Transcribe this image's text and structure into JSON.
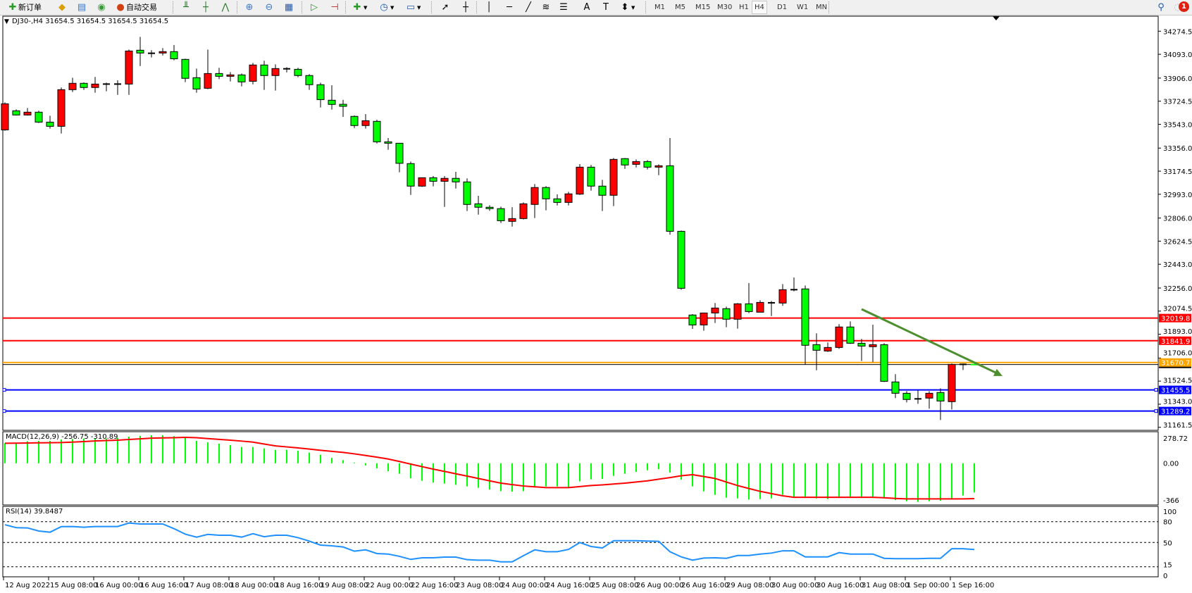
{
  "toolbar": {
    "new_order": "新订单",
    "auto_trading": "自动交易",
    "timeframes": [
      "M1",
      "M5",
      "M15",
      "M30",
      "H1",
      "H4",
      "D1",
      "W1",
      "MN"
    ],
    "active_timeframe": "H4",
    "notification_count": "1",
    "icons": [
      "new-order-icon",
      "gold-icon",
      "market-watch-icon",
      "signals-icon",
      "auto-trading-icon",
      "bar-chart-icon",
      "candlestick-icon",
      "line-chart-icon",
      "zoom-in-icon",
      "zoom-out-icon",
      "tile-windows-icon",
      "autoscroll-icon",
      "chart-shift-icon",
      "add-indicator-icon",
      "periods-icon",
      "templates-icon",
      "cursor-icon",
      "crosshair-icon",
      "vertical-line-icon",
      "horizontal-line-icon",
      "trendline-icon",
      "fibonacci-expansion-icon",
      "fibonacci-fan-icon",
      "text-icon",
      "text-label-icon",
      "arrows-icon",
      "search-icon",
      "notification-icon"
    ]
  },
  "chart": {
    "header": "DJ30-,H4  31654.5 31654.5 31654.5 31654.5",
    "macd_header": "MACD(12,26,9) -256.75 -310.89",
    "rsi_header": "RSI(14) 39.8487",
    "colors": {
      "bull": "#ff0000",
      "bear": "#00ff00",
      "macd_hist": "#00ff00",
      "signal": "#ff0000",
      "rsi": "#1e90ff",
      "trend_arrow": "#4d8f2f"
    }
  },
  "chart_data": [
    {
      "type": "candlestick",
      "symbol": "DJ30-",
      "timeframe": "H4",
      "price_ticks": [
        "34274.5",
        "34093.0",
        "33906.0",
        "33724.5",
        "33543.0",
        "33356.0",
        "33174.5",
        "32993.0",
        "32806.0",
        "32624.5",
        "32443.0",
        "32256.0",
        "32074.5",
        "31893.0",
        "31706.0",
        "31524.5",
        "31343.0",
        "31161.5"
      ],
      "time_labels": [
        "12 Aug 2022",
        "15 Aug 08:00",
        "16 Aug 00:00",
        "16 Aug 16:00",
        "17 Aug 08:00",
        "18 Aug 00:00",
        "18 Aug 16:00",
        "19 Aug 08:00",
        "22 Aug 00:00",
        "22 Aug 16:00",
        "23 Aug 08:00",
        "24 Aug 00:00",
        "24 Aug 16:00",
        "25 Aug 08:00",
        "26 Aug 00:00",
        "26 Aug 16:00",
        "29 Aug 08:00",
        "30 Aug 00:00",
        "30 Aug 16:00",
        "31 Aug 08:00",
        "1 Sep 00:00",
        "1 Sep 16:00"
      ],
      "ohlc": [
        [
          33499,
          33715,
          33492,
          33704
        ],
        [
          33649,
          33660,
          33612,
          33616
        ],
        [
          33616,
          33671,
          33612,
          33638
        ],
        [
          33638,
          33649,
          33553,
          33560
        ],
        [
          33560,
          33610,
          33509,
          33527
        ],
        [
          33527,
          33832,
          33470,
          33815
        ],
        [
          33815,
          33909,
          33797,
          33865
        ],
        [
          33865,
          33872,
          33813,
          33832
        ],
        [
          33832,
          33915,
          33791,
          33859
        ],
        [
          33859,
          33870,
          33802,
          33859
        ],
        [
          33859,
          33889,
          33774,
          33859
        ],
        [
          33859,
          34130,
          33774,
          34119
        ],
        [
          34125,
          34230,
          34001,
          34103
        ],
        [
          34101,
          34125,
          34068,
          34101
        ],
        [
          34103,
          34142,
          34084,
          34114
        ],
        [
          34114,
          34166,
          34046,
          34058
        ],
        [
          34053,
          34058,
          33874,
          33904
        ],
        [
          33909,
          33981,
          33791,
          33820
        ],
        [
          33826,
          34130,
          33819,
          33942
        ],
        [
          33942,
          33987,
          33898,
          33920
        ],
        [
          33920,
          33953,
          33880,
          33931
        ],
        [
          33931,
          33942,
          33841,
          33876
        ],
        [
          33881,
          34025,
          33857,
          34009
        ],
        [
          34009,
          34042,
          33813,
          33926
        ],
        [
          33926,
          34014,
          33808,
          33981
        ],
        [
          33979,
          33992,
          33951,
          33979
        ],
        [
          33975,
          33987,
          33913,
          33926
        ],
        [
          33926,
          33937,
          33813,
          33854
        ],
        [
          33854,
          33870,
          33675,
          33737
        ],
        [
          33732,
          33850,
          33658,
          33699
        ],
        [
          33700,
          33735,
          33601,
          33684
        ],
        [
          33605,
          33612,
          33514,
          33533
        ],
        [
          33533,
          33623,
          33509,
          33571
        ],
        [
          33566,
          33579,
          33392,
          33405
        ],
        [
          33405,
          33435,
          33343,
          33394
        ],
        [
          33394,
          33394,
          33166,
          33236
        ],
        [
          33234,
          33250,
          32988,
          33057
        ],
        [
          33057,
          33123,
          33051,
          33123
        ],
        [
          33123,
          33136,
          33055,
          33095
        ],
        [
          33095,
          33136,
          32894,
          33118
        ],
        [
          33118,
          33169,
          33038,
          33090
        ],
        [
          33090,
          33118,
          32861,
          32913
        ],
        [
          32918,
          32981,
          32833,
          32891
        ],
        [
          32891,
          32907,
          32863,
          32880
        ],
        [
          32880,
          32896,
          32767,
          32785
        ],
        [
          32780,
          32892,
          32739,
          32802
        ],
        [
          32802,
          32929,
          32795,
          32918
        ],
        [
          32913,
          33073,
          32806,
          33046
        ],
        [
          33046,
          33057,
          32867,
          32957
        ],
        [
          32957,
          32992,
          32905,
          32929
        ],
        [
          32929,
          33012,
          32905,
          32996
        ],
        [
          32994,
          33230,
          32988,
          33206
        ],
        [
          33206,
          33223,
          33022,
          33057
        ],
        [
          33057,
          33106,
          32861,
          32985
        ],
        [
          32985,
          33278,
          32900,
          33267
        ],
        [
          33273,
          33278,
          33193,
          33223
        ],
        [
          33228,
          33267,
          33204,
          33250
        ],
        [
          33250,
          33261,
          33188,
          33206
        ],
        [
          33206,
          33228,
          33143,
          33217
        ],
        [
          33217,
          33435,
          32675,
          32702
        ],
        [
          32702,
          32708,
          32243,
          32254
        ],
        [
          32044,
          32051,
          31935,
          31966
        ],
        [
          31966,
          32060,
          31920,
          32060
        ],
        [
          32060,
          32138,
          31981,
          32099
        ],
        [
          32094,
          32110,
          31948,
          32011
        ],
        [
          32011,
          32138,
          31937,
          32132
        ],
        [
          32132,
          32295,
          32059,
          32071
        ],
        [
          32066,
          32160,
          32066,
          32143
        ],
        [
          32140,
          32154,
          32036,
          32140
        ],
        [
          32138,
          32287,
          32116,
          32243
        ],
        [
          32243,
          32339,
          32230,
          32243
        ],
        [
          32249,
          32276,
          31654,
          31806
        ],
        [
          31811,
          31900,
          31610,
          31767
        ],
        [
          31761,
          31828,
          31754,
          31789
        ],
        [
          31789,
          31972,
          31778,
          31950
        ],
        [
          31950,
          31994,
          31817,
          31822
        ],
        [
          31822,
          31856,
          31682,
          31800
        ],
        [
          31795,
          31968,
          31673,
          31811
        ],
        [
          31811,
          31822,
          31518,
          31523
        ],
        [
          31518,
          31579,
          31391,
          31429
        ],
        [
          31429,
          31446,
          31357,
          31380
        ],
        [
          31385,
          31452,
          31346,
          31385
        ],
        [
          31391,
          31446,
          31308,
          31429
        ],
        [
          31435,
          31468,
          31219,
          31368
        ],
        [
          31363,
          31662,
          31302,
          31656
        ],
        [
          31656,
          31662,
          31612,
          31656
        ],
        [
          31654.5,
          31654.5,
          31654.5,
          31654.5
        ]
      ],
      "levels": [
        {
          "price": 32019.8,
          "label": "32019.8",
          "color": "#ff0000"
        },
        {
          "price": 31841.9,
          "label": "31841.9",
          "color": "#ff0000"
        },
        {
          "price": 31670.7,
          "label": "31670.7",
          "color": "#ffa500"
        },
        {
          "price": 31455.5,
          "label": "31455.5",
          "color": "#0000ff"
        },
        {
          "price": 31289.2,
          "label": "31289.2",
          "color": "#0000ff"
        }
      ],
      "bid": 31654.5,
      "trend_arrow": {
        "from": {
          "candle": 76,
          "price": 32090
        },
        "to": {
          "candle": 88.5,
          "price": 31565
        }
      }
    },
    {
      "type": "bar",
      "indicator": "MACD(12,26,9)",
      "axis_labels": [
        "278.72",
        "0.00",
        "-366"
      ],
      "ylim": [
        -366,
        278.72
      ],
      "macd": [
        175,
        175,
        192,
        196,
        196,
        208,
        212,
        216,
        216,
        216,
        222,
        233,
        239,
        245,
        245,
        237,
        229,
        196,
        183,
        171,
        159,
        142,
        142,
        130,
        117,
        117,
        109,
        93,
        74,
        47,
        27,
        6,
        -19,
        -45,
        -70,
        -93,
        -132,
        -155,
        -169,
        -179,
        -190,
        -204,
        -216,
        -231,
        -245,
        -249,
        -245,
        -210,
        -204,
        -204,
        -216,
        -159,
        -142,
        -138,
        -111,
        -93,
        -76,
        -62,
        -52,
        -82,
        -144,
        -204,
        -247,
        -278,
        -303,
        -309,
        -319,
        -315,
        -309,
        -278,
        -295,
        -303,
        -309,
        -315,
        -303,
        -303,
        -303,
        -303,
        -309,
        -323,
        -334,
        -340,
        -334,
        -330,
        -315,
        -284,
        -256.75
      ],
      "signal": [
        175,
        176,
        177,
        179,
        180,
        181,
        185,
        190,
        195,
        199,
        202,
        208,
        214,
        220,
        222,
        224,
        227,
        224,
        216,
        209,
        202,
        194,
        185,
        168,
        152,
        143,
        134,
        124,
        113,
        104,
        95,
        82,
        68,
        53,
        37,
        15,
        -8,
        -30,
        -52,
        -72,
        -93,
        -113,
        -134,
        -155,
        -175,
        -188,
        -200,
        -207,
        -214,
        -214,
        -214,
        -205,
        -196,
        -190,
        -183,
        -175,
        -165,
        -155,
        -140,
        -126,
        -110,
        -101,
        -117,
        -134,
        -165,
        -196,
        -222,
        -247,
        -267,
        -286,
        -299,
        -299,
        -299,
        -299,
        -299,
        -299,
        -299,
        -299,
        -303,
        -309,
        -313,
        -313,
        -313,
        -313,
        -313,
        -313,
        -310.89
      ]
    },
    {
      "type": "line",
      "indicator": "RSI(14)",
      "axis_labels": [
        "100",
        "80",
        "50",
        "15",
        "0"
      ],
      "levels": [
        80,
        50,
        15
      ],
      "ylim": [
        0,
        100
      ],
      "values": [
        75.6,
        71.3,
        71,
        66.5,
        64.8,
        72.9,
        73,
        72,
        73,
        73,
        73,
        78,
        76.7,
        76.7,
        76.7,
        69.9,
        62,
        57.7,
        61.7,
        60.4,
        60.4,
        57.7,
        62.7,
        58.3,
        60.4,
        60.4,
        56.9,
        52,
        46.2,
        45.2,
        43.5,
        37.4,
        39.4,
        34,
        33.3,
        30,
        25.6,
        27.9,
        27.9,
        28.9,
        28.9,
        25.2,
        24.5,
        24.5,
        22.1,
        22.1,
        31,
        39.4,
        36.7,
        36.7,
        40,
        49.9,
        44.2,
        42.1,
        52.6,
        52.6,
        52.6,
        52,
        51.6,
        36.7,
        29.2,
        24.5,
        27.5,
        27.9,
        27.2,
        31.2,
        31.2,
        33.3,
        34.7,
        38,
        38,
        29.2,
        29.2,
        29.2,
        35.4,
        33.3,
        33.3,
        33.3,
        27.2,
        26.6,
        26.6,
        26.6,
        27.2,
        27.2,
        41,
        41,
        39.8487
      ]
    }
  ]
}
